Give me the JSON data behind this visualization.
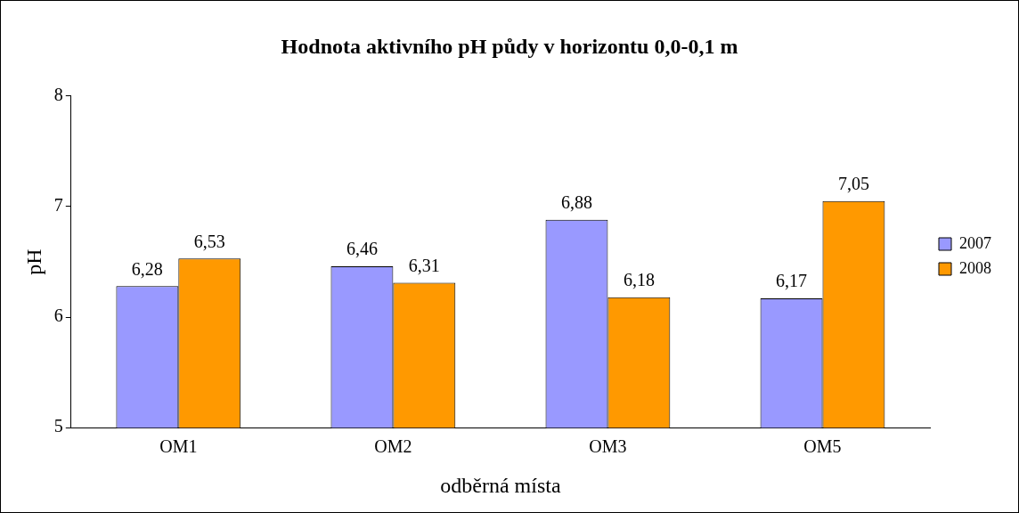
{
  "chart_data": {
    "type": "bar",
    "title": "Hodnota aktivního pH půdy v horizontu 0,0-0,1 m",
    "xlabel": "odběrná místa",
    "ylabel": "pH",
    "categories": [
      "OM1",
      "OM2",
      "OM3",
      "OM5"
    ],
    "series": [
      {
        "name": "2007",
        "color": "#9999ff",
        "values": [
          6.28,
          6.46,
          6.88,
          6.17
        ],
        "value_labels": [
          "6,28",
          "6,46",
          "6,88",
          "6,17"
        ]
      },
      {
        "name": "2008",
        "color": "#ff9900",
        "values": [
          6.53,
          6.31,
          6.18,
          7.05
        ],
        "value_labels": [
          "6,53",
          "6,31",
          "6,18",
          "7,05"
        ]
      }
    ],
    "ylim": [
      5,
      8
    ],
    "yticks": [
      5,
      6,
      7,
      8
    ],
    "grid": false,
    "legend": "right"
  }
}
